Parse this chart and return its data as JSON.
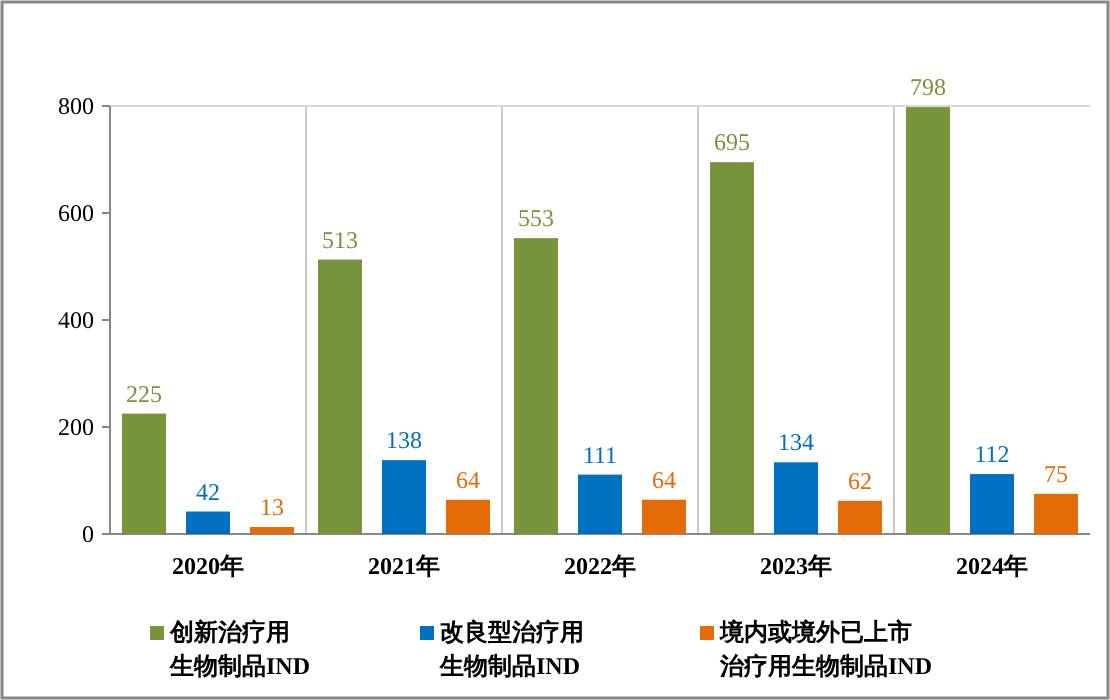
{
  "chart_data": {
    "type": "bar",
    "categories": [
      "2020年",
      "2021年",
      "2022年",
      "2023年",
      "2024年"
    ],
    "series": [
      {
        "name": "创新治疗用生物制品IND",
        "color": "#77933c",
        "values": [
          225,
          513,
          553,
          695,
          798
        ]
      },
      {
        "name": "改良型治疗用生物制品IND",
        "color": "#0070c0",
        "values": [
          42,
          138,
          111,
          134,
          112
        ]
      },
      {
        "name": "境内或境外已上市治疗用生物制品IND",
        "color": "#e36c09",
        "values": [
          13,
          64,
          64,
          62,
          75
        ]
      }
    ],
    "ylim": [
      0,
      800
    ],
    "yticks": [
      0,
      200,
      400,
      600,
      800
    ],
    "grid": "x",
    "legend": "bottom",
    "data_labels": true
  }
}
